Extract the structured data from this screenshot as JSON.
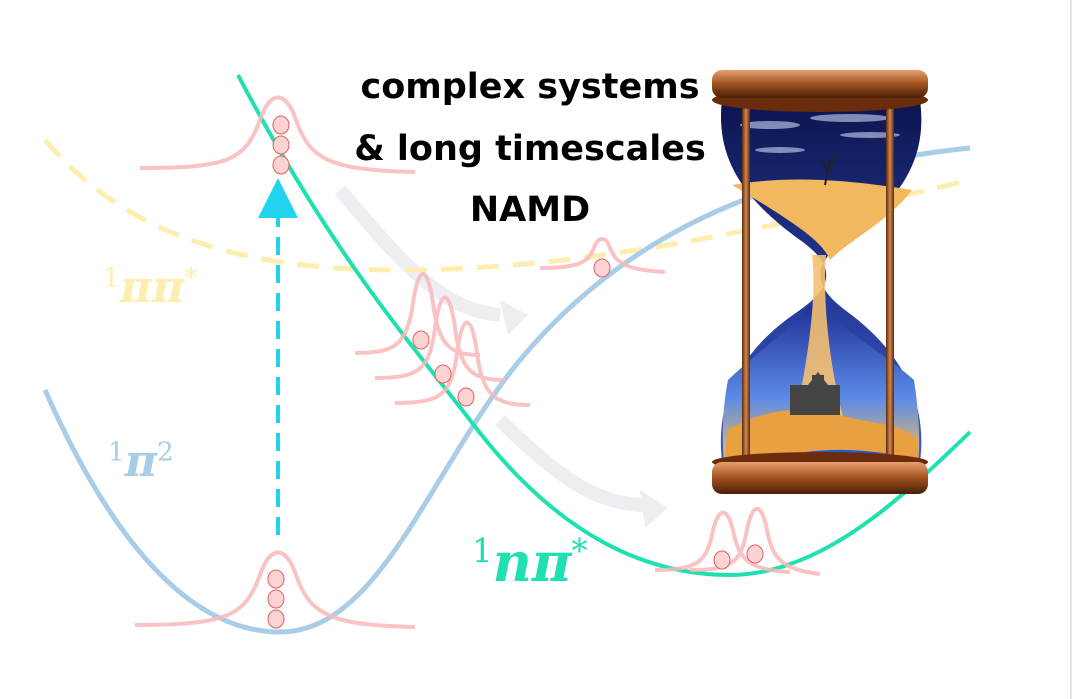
{
  "headline": {
    "line1": "complex systems",
    "line2": "& long timescales",
    "line3": "NAMD"
  },
  "labels": {
    "pipi_star": {
      "prefix": "1",
      "body": "ππ",
      "suffix": "*"
    },
    "pi2": {
      "prefix": "1",
      "body": "π",
      "suffix": "2"
    },
    "npi_star": {
      "prefix": "1",
      "body": "nπ",
      "suffix": "*"
    }
  },
  "colors": {
    "ground_state": "#a9cde6",
    "pipi_state": "#fdeeb0",
    "npi_state": "#1ee0b0",
    "wavepacket": "#f9b9b9",
    "excitation_arrow": "#22d3ee",
    "flow_arrow": "#e8eaef"
  },
  "icons": {
    "hourglass": "hourglass-icon"
  }
}
